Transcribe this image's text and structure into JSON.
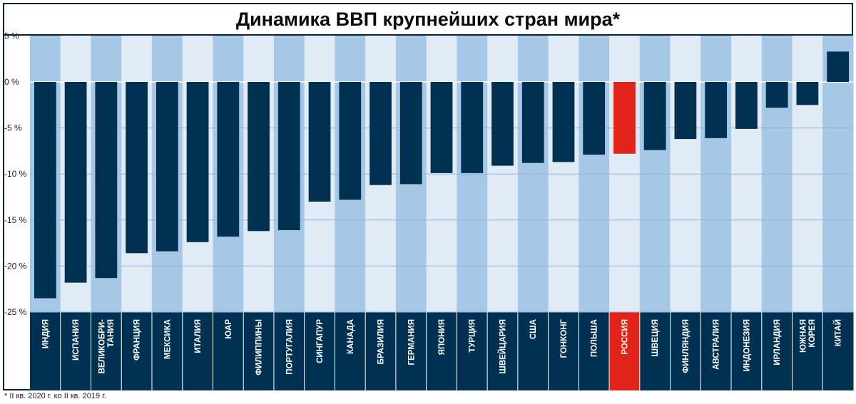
{
  "chart_data": {
    "type": "bar",
    "title": "Динамика ВВП крупнейших стран мира*",
    "footnote": "* II кв. 2020 г. ко II кв. 2019 г.",
    "ylim": [
      -25,
      5
    ],
    "yticks": [
      5,
      0,
      -5,
      -10,
      -15,
      -20,
      -25
    ],
    "ytick_labels": [
      "5 %",
      "0 %",
      "-5 %",
      "-10 %",
      "-15 %",
      "-20 %",
      "-25 %"
    ],
    "categories": [
      [
        "ИНДИЯ"
      ],
      [
        "ИСПАНИЯ"
      ],
      [
        "ВЕЛИКОБРИ-",
        "ТАНИЯ"
      ],
      [
        "ФРАНЦИЯ"
      ],
      [
        "МЕКСИКА"
      ],
      [
        "ИТАЛИЯ"
      ],
      [
        "ЮАР"
      ],
      [
        "ФИЛИППИНЫ"
      ],
      [
        "ПОРТУГАЛИЯ"
      ],
      [
        "СИНГАПУР"
      ],
      [
        "КАНАДА"
      ],
      [
        "БРАЗИЛИЯ"
      ],
      [
        "ГЕРМАНИЯ"
      ],
      [
        "ЯПОНИЯ"
      ],
      [
        "ТУРЦИЯ"
      ],
      [
        "ШВЕЙЦАРИЯ"
      ],
      [
        "США"
      ],
      [
        "ГОНКОНГ"
      ],
      [
        "ПОЛЬША"
      ],
      [
        "РОССИЯ"
      ],
      [
        "ШВЕЦИЯ"
      ],
      [
        "ФИНЛЯНДИЯ"
      ],
      [
        "АВСТРАЛИЯ"
      ],
      [
        "ИНДОНЕЗИЯ"
      ],
      [
        "ИРЛАНДИЯ"
      ],
      [
        "ЮЖНАЯ",
        "КОРЕЯ"
      ],
      [
        "КИТАЙ"
      ]
    ],
    "values": [
      -23.5,
      -21.8,
      -21.3,
      -18.6,
      -18.4,
      -17.4,
      -16.8,
      -16.2,
      -16.1,
      -13.0,
      -12.8,
      -11.2,
      -11.1,
      -9.9,
      -9.9,
      -9.1,
      -8.8,
      -8.7,
      -7.9,
      -7.8,
      -7.4,
      -6.2,
      -6.1,
      -5.1,
      -2.8,
      -2.5,
      3.3
    ],
    "highlight_index": 19,
    "colors": {
      "bar": "#003152",
      "highlight_bar": "#e2231a",
      "highlight_column": "#e2231a",
      "column_dark": "#a6c8e6",
      "column_light": "#e0ebf6",
      "gridline": "#8fb3d9",
      "label_text": "#ffffff",
      "axis_text": "#222222"
    }
  }
}
